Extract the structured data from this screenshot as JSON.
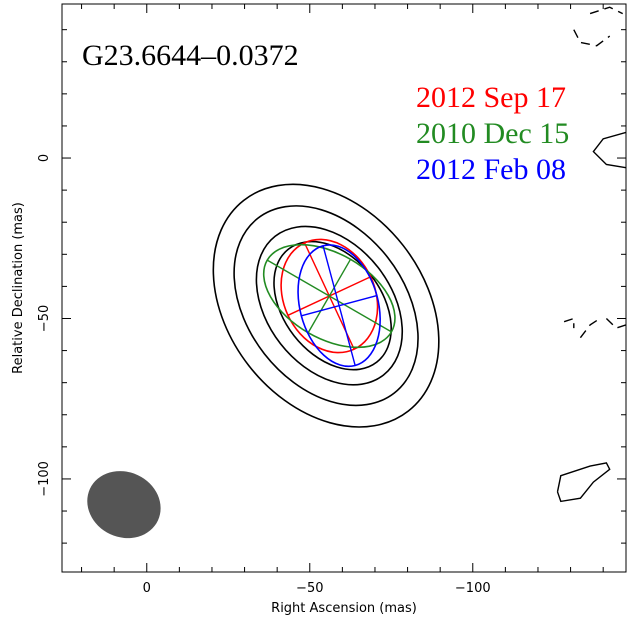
{
  "chart_data": {
    "type": "contour",
    "title": "G23.6644–0.0372",
    "xlabel": "Right Ascension  (mas)",
    "ylabel": "Relative Declination  (mas)",
    "xlim": [
      26,
      -147
    ],
    "ylim": [
      -129,
      48
    ],
    "x_reversed": true,
    "x_ticks": [
      0,
      -50,
      -100
    ],
    "x_tick_labels": [
      "0",
      "−50",
      "−100"
    ],
    "y_ticks": [
      0,
      -50,
      -100
    ],
    "y_tick_labels": [
      "0",
      "−50",
      "−100"
    ],
    "grid": false,
    "contour_color": "#000000",
    "contours": [
      {
        "ra": -55,
        "dec": -46,
        "a": 41,
        "b": 30,
        "pa_deg": 128
      },
      {
        "ra": -55,
        "dec": -46,
        "a": 34,
        "b": 24,
        "pa_deg": 128
      },
      {
        "ra": -56,
        "dec": -46,
        "a": 27,
        "b": 19,
        "pa_deg": 128
      },
      {
        "ra": -57,
        "dec": -46,
        "a": 22,
        "b": 15,
        "pa_deg": 128
      }
    ],
    "edge_contours": [
      {
        "dashed": true,
        "points": [
          [
            -131,
            40
          ],
          [
            -133,
            36
          ],
          [
            -138,
            35
          ],
          [
            -142,
            38
          ]
        ]
      },
      {
        "dashed": true,
        "points": [
          [
            -136,
            45
          ],
          [
            -142,
            47
          ],
          [
            -146,
            45
          ]
        ]
      },
      {
        "dashed": false,
        "points": [
          [
            -147,
            8
          ],
          [
            -140,
            6
          ],
          [
            -137,
            2
          ],
          [
            -141,
            -2
          ],
          [
            -147,
            -3
          ]
        ]
      },
      {
        "dashed": true,
        "points": [
          [
            -128,
            -51
          ],
          [
            -131,
            -50
          ],
          [
            -131,
            -53
          ]
        ]
      },
      {
        "dashed": true,
        "points": [
          [
            -133,
            -56
          ],
          [
            -136,
            -52
          ],
          [
            -139,
            -50
          ]
        ]
      },
      {
        "dashed": true,
        "points": [
          [
            -141,
            -50
          ],
          [
            -144,
            -53
          ],
          [
            -147,
            -52
          ]
        ]
      },
      {
        "dashed": false,
        "points": [
          [
            -126,
            -104
          ],
          [
            -127,
            -99
          ],
          [
            -136,
            -96
          ],
          [
            -141,
            -95
          ],
          [
            -142,
            -97
          ],
          [
            -137,
            -101
          ],
          [
            -133,
            -106
          ],
          [
            -127,
            -107
          ],
          [
            -126,
            -104
          ]
        ]
      }
    ],
    "beam": {
      "ra": 7,
      "dec": -108,
      "major": 11.5,
      "minor": 10,
      "pa_deg": 155,
      "color": "#555555"
    },
    "series": [
      {
        "name": "2012  Sep  17",
        "color": "#ff0000",
        "ra": -56,
        "dec": -43,
        "a": 18,
        "b": 14,
        "pa_deg": 115
      },
      {
        "name": "2010 Dec 15",
        "color": "#228b22",
        "ra": -56,
        "dec": -43,
        "a": 22,
        "b": 13,
        "pa_deg": 150
      },
      {
        "name": "2012 Feb 08",
        "color": "#0000ff",
        "ra": -59,
        "dec": -46,
        "a": 19,
        "b": 12,
        "pa_deg": 105
      }
    ]
  }
}
